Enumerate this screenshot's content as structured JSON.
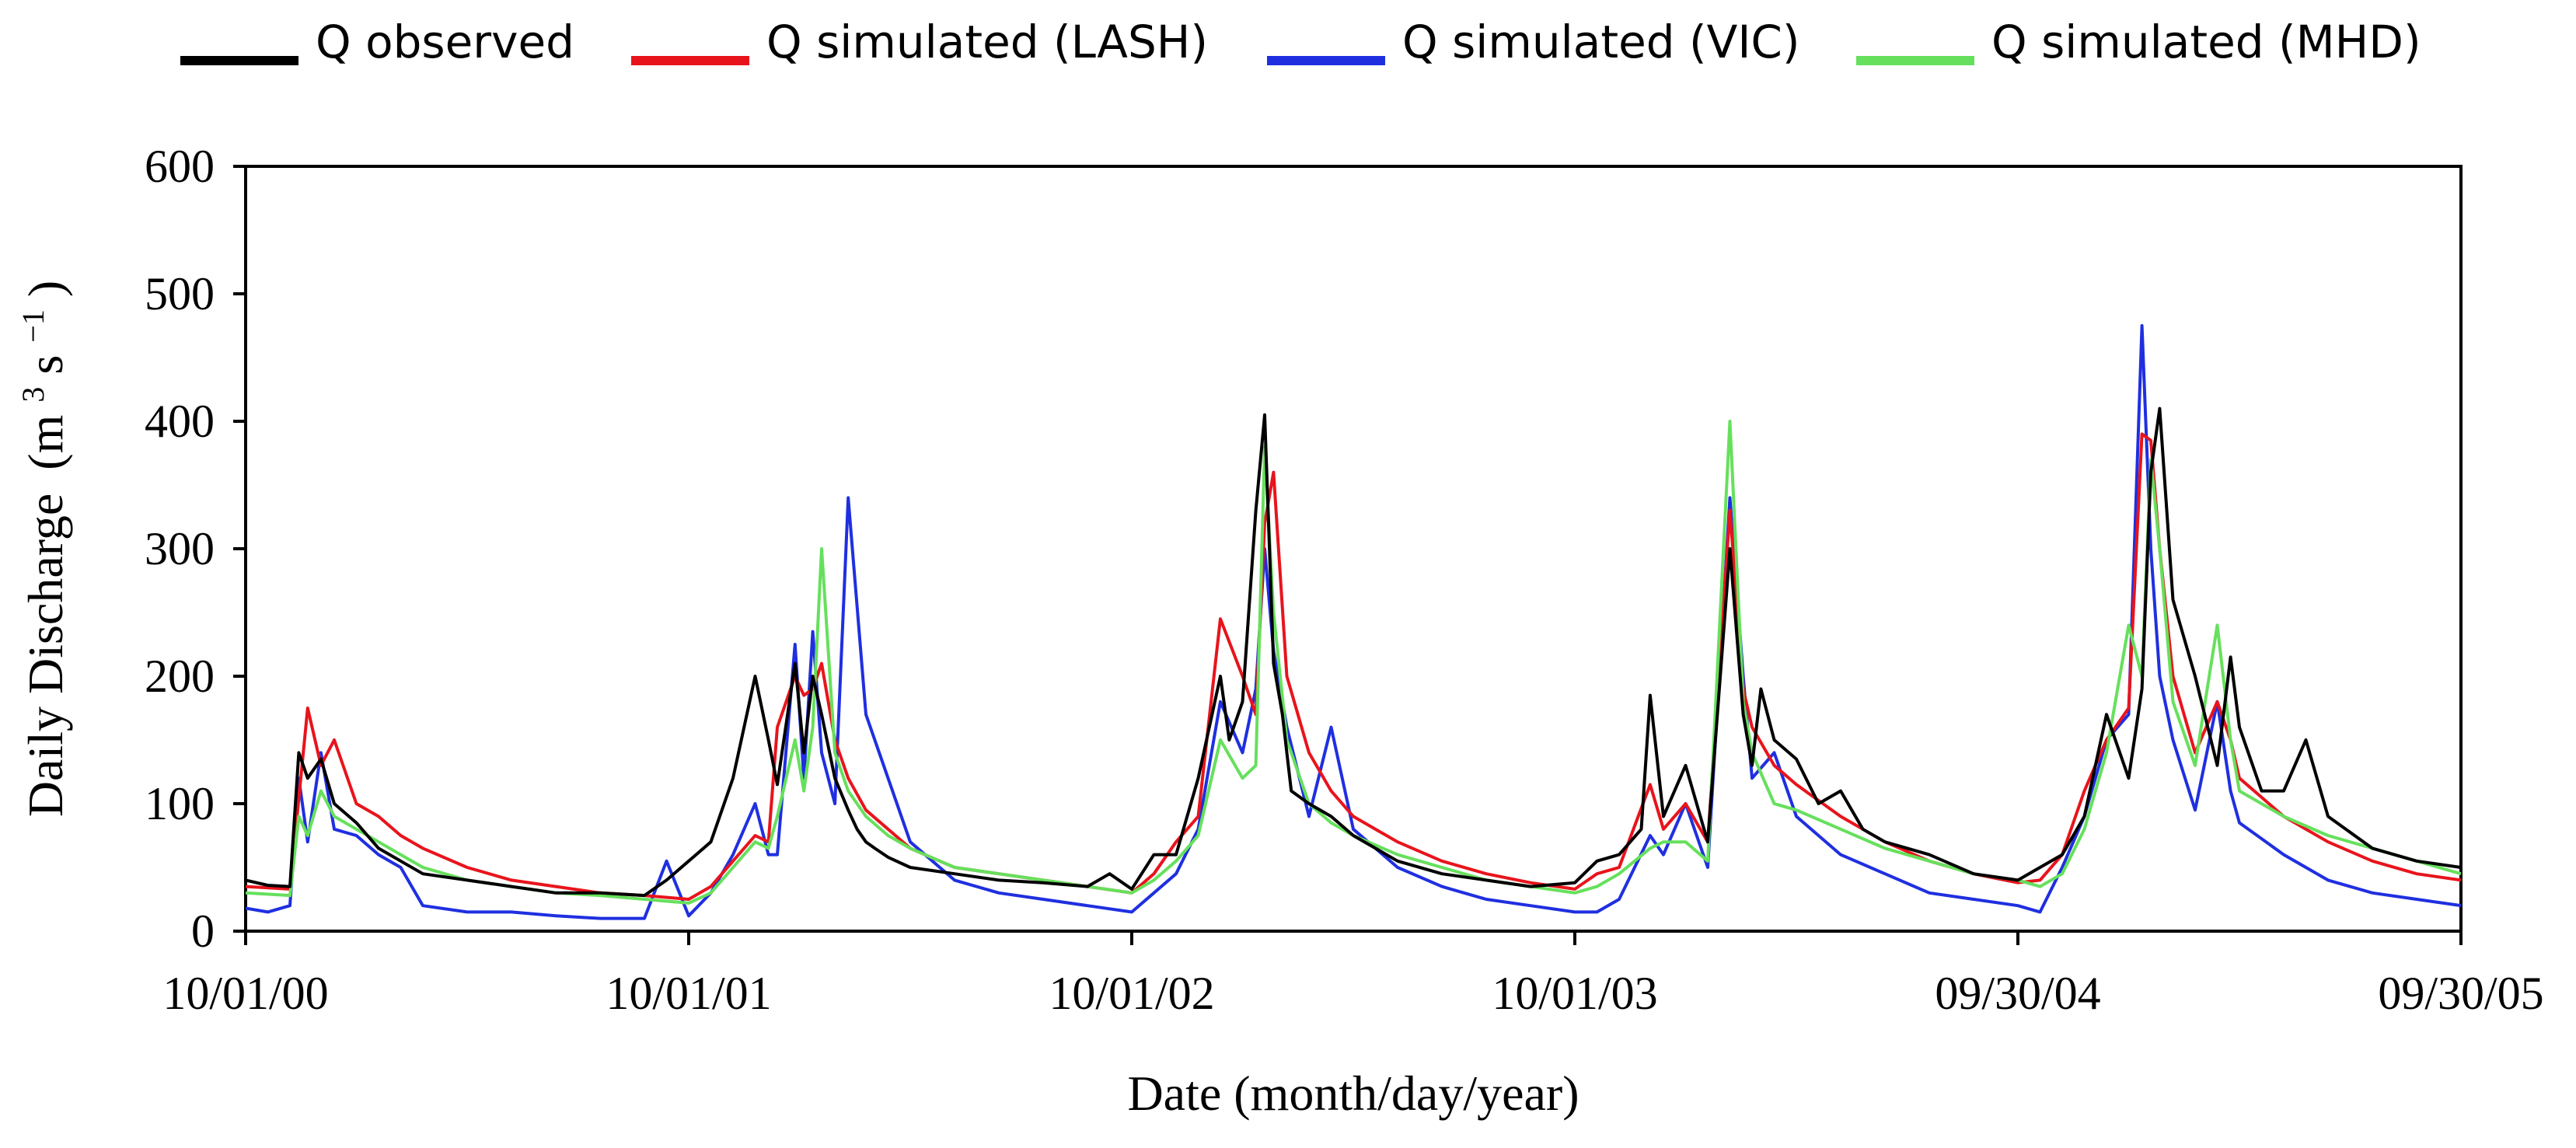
{
  "chart_data": {
    "type": "line",
    "title": "",
    "xlabel": "Date (month/day/year)",
    "ylabel": "Daily Discharge",
    "ylabel_unit": {
      "base": "(m",
      "sup1": "3",
      "mid": "s",
      "sup2": "−1",
      "end": ")"
    },
    "ylim": [
      0,
      600
    ],
    "yticks": [
      "0",
      "100",
      "200",
      "300",
      "400",
      "500",
      "600"
    ],
    "xlim": [
      "10/01/00",
      "09/30/05"
    ],
    "xticks": [
      "10/01/00",
      "10/01/01",
      "10/01/02",
      "10/01/03",
      "09/30/04",
      "09/30/05"
    ],
    "grid": false,
    "legend_position": "top",
    "series": [
      {
        "name": "Q observed",
        "color": "#000000",
        "x": [
          0,
          0.05,
          0.1,
          0.12,
          0.14,
          0.17,
          0.2,
          0.25,
          0.3,
          0.35,
          0.4,
          0.5,
          0.6,
          0.7,
          0.8,
          0.9,
          0.95,
          1.0,
          1.05,
          1.1,
          1.15,
          1.18,
          1.2,
          1.24,
          1.26,
          1.28,
          1.3,
          1.33,
          1.36,
          1.38,
          1.4,
          1.42,
          1.45,
          1.5,
          1.6,
          1.7,
          1.8,
          1.9,
          1.95,
          2.0,
          2.05,
          2.1,
          2.15,
          2.2,
          2.22,
          2.25,
          2.28,
          2.3,
          2.32,
          2.34,
          2.36,
          2.4,
          2.45,
          2.5,
          2.55,
          2.6,
          2.7,
          2.8,
          2.9,
          3.0,
          3.05,
          3.1,
          3.15,
          3.17,
          3.2,
          3.25,
          3.3,
          3.35,
          3.38,
          3.4,
          3.42,
          3.45,
          3.5,
          3.55,
          3.6,
          3.65,
          3.7,
          3.8,
          3.9,
          4.0,
          4.05,
          4.1,
          4.15,
          4.2,
          4.25,
          4.28,
          4.3,
          4.32,
          4.35,
          4.4,
          4.45,
          4.48,
          4.5,
          4.55,
          4.6,
          4.65,
          4.7,
          4.8,
          4.9,
          5.0
        ],
        "y": [
          40,
          36,
          35,
          140,
          120,
          135,
          100,
          85,
          65,
          55,
          45,
          40,
          35,
          30,
          30,
          28,
          40,
          55,
          70,
          120,
          200,
          150,
          115,
          210,
          140,
          200,
          170,
          120,
          95,
          80,
          70,
          65,
          58,
          50,
          45,
          40,
          38,
          35,
          45,
          33,
          60,
          60,
          120,
          200,
          150,
          180,
          330,
          405,
          210,
          170,
          110,
          100,
          90,
          75,
          65,
          55,
          45,
          40,
          35,
          38,
          55,
          60,
          80,
          185,
          90,
          130,
          70,
          300,
          170,
          130,
          190,
          150,
          135,
          100,
          110,
          80,
          70,
          60,
          45,
          40,
          50,
          60,
          90,
          170,
          120,
          190,
          360,
          410,
          260,
          200,
          130,
          215,
          160,
          110,
          110,
          150,
          90,
          65,
          55,
          50
        ]
      },
      {
        "name": "Q simulated (LASH)",
        "color": "#e8141c",
        "x": [
          0,
          0.1,
          0.14,
          0.17,
          0.2,
          0.25,
          0.3,
          0.35,
          0.4,
          0.5,
          0.6,
          0.7,
          0.8,
          0.9,
          1.0,
          1.05,
          1.1,
          1.15,
          1.18,
          1.2,
          1.24,
          1.26,
          1.28,
          1.3,
          1.33,
          1.36,
          1.4,
          1.45,
          1.5,
          1.6,
          1.7,
          1.8,
          1.9,
          2.0,
          2.05,
          2.1,
          2.15,
          2.2,
          2.25,
          2.28,
          2.3,
          2.32,
          2.35,
          2.4,
          2.45,
          2.5,
          2.6,
          2.7,
          2.8,
          2.9,
          3.0,
          3.05,
          3.1,
          3.17,
          3.2,
          3.25,
          3.3,
          3.35,
          3.38,
          3.4,
          3.45,
          3.5,
          3.6,
          3.7,
          3.8,
          3.9,
          4.0,
          4.05,
          4.1,
          4.15,
          4.2,
          4.25,
          4.28,
          4.3,
          4.32,
          4.35,
          4.4,
          4.45,
          4.48,
          4.5,
          4.6,
          4.7,
          4.8,
          4.9,
          5.0
        ],
        "y": [
          35,
          33,
          175,
          130,
          150,
          100,
          90,
          75,
          65,
          50,
          40,
          35,
          30,
          28,
          25,
          35,
          55,
          75,
          70,
          160,
          200,
          185,
          190,
          210,
          150,
          120,
          95,
          80,
          65,
          50,
          45,
          40,
          35,
          30,
          45,
          70,
          90,
          245,
          200,
          170,
          320,
          360,
          200,
          140,
          110,
          90,
          70,
          55,
          45,
          38,
          33,
          45,
          50,
          115,
          80,
          100,
          70,
          330,
          190,
          160,
          130,
          115,
          90,
          70,
          55,
          45,
          38,
          40,
          60,
          110,
          150,
          175,
          390,
          385,
          300,
          200,
          140,
          180,
          150,
          120,
          90,
          70,
          55,
          45,
          40
        ]
      },
      {
        "name": "Q simulated (VIC)",
        "color": "#1f2fe0",
        "x": [
          0,
          0.05,
          0.1,
          0.12,
          0.14,
          0.17,
          0.2,
          0.25,
          0.3,
          0.35,
          0.4,
          0.5,
          0.6,
          0.7,
          0.8,
          0.9,
          0.95,
          1.0,
          1.05,
          1.1,
          1.15,
          1.18,
          1.2,
          1.24,
          1.26,
          1.28,
          1.3,
          1.33,
          1.36,
          1.4,
          1.45,
          1.5,
          1.6,
          1.7,
          1.8,
          1.9,
          2.0,
          2.05,
          2.1,
          2.15,
          2.2,
          2.25,
          2.28,
          2.3,
          2.32,
          2.35,
          2.4,
          2.45,
          2.5,
          2.6,
          2.7,
          2.8,
          2.9,
          3.0,
          3.05,
          3.1,
          3.17,
          3.2,
          3.25,
          3.3,
          3.35,
          3.38,
          3.4,
          3.45,
          3.5,
          3.6,
          3.7,
          3.8,
          3.9,
          4.0,
          4.05,
          4.1,
          4.15,
          4.2,
          4.25,
          4.28,
          4.3,
          4.32,
          4.35,
          4.4,
          4.45,
          4.48,
          4.5,
          4.6,
          4.7,
          4.8,
          4.9,
          5.0
        ],
        "y": [
          18,
          15,
          20,
          120,
          70,
          140,
          80,
          75,
          60,
          50,
          20,
          15,
          15,
          12,
          10,
          10,
          55,
          12,
          30,
          60,
          100,
          60,
          60,
          225,
          120,
          235,
          140,
          100,
          340,
          170,
          120,
          70,
          40,
          30,
          25,
          20,
          15,
          30,
          45,
          80,
          180,
          140,
          190,
          300,
          220,
          160,
          90,
          160,
          80,
          50,
          35,
          25,
          20,
          15,
          15,
          25,
          75,
          60,
          100,
          50,
          340,
          200,
          120,
          140,
          90,
          60,
          45,
          30,
          25,
          20,
          15,
          50,
          90,
          150,
          170,
          475,
          300,
          200,
          150,
          95,
          180,
          110,
          85,
          60,
          40,
          30,
          25,
          20
        ]
      },
      {
        "name": "Q simulated (MHD)",
        "color": "#66e05c",
        "x": [
          0,
          0.1,
          0.12,
          0.14,
          0.17,
          0.2,
          0.25,
          0.3,
          0.35,
          0.4,
          0.5,
          0.6,
          0.7,
          0.8,
          0.9,
          1.0,
          1.05,
          1.1,
          1.15,
          1.18,
          1.2,
          1.24,
          1.26,
          1.28,
          1.3,
          1.33,
          1.36,
          1.4,
          1.45,
          1.5,
          1.6,
          1.7,
          1.8,
          1.9,
          2.0,
          2.05,
          2.1,
          2.15,
          2.2,
          2.25,
          2.28,
          2.3,
          2.32,
          2.35,
          2.4,
          2.45,
          2.5,
          2.6,
          2.7,
          2.8,
          2.9,
          3.0,
          3.05,
          3.1,
          3.17,
          3.2,
          3.25,
          3.3,
          3.35,
          3.38,
          3.4,
          3.45,
          3.5,
          3.6,
          3.7,
          3.8,
          3.9,
          4.0,
          4.05,
          4.1,
          4.15,
          4.2,
          4.25,
          4.28,
          4.3,
          4.32,
          4.35,
          4.4,
          4.45,
          4.48,
          4.5,
          4.6,
          4.7,
          4.8,
          4.9,
          5.0
        ],
        "y": [
          30,
          28,
          90,
          75,
          110,
          90,
          80,
          70,
          60,
          50,
          40,
          35,
          30,
          28,
          25,
          22,
          30,
          50,
          70,
          65,
          90,
          150,
          110,
          160,
          300,
          140,
          110,
          90,
          75,
          65,
          50,
          45,
          40,
          35,
          30,
          40,
          55,
          75,
          150,
          120,
          130,
          380,
          250,
          150,
          100,
          85,
          75,
          60,
          50,
          40,
          35,
          30,
          35,
          45,
          65,
          70,
          70,
          55,
          400,
          180,
          140,
          100,
          95,
          80,
          65,
          55,
          45,
          40,
          35,
          45,
          80,
          140,
          240,
          200,
          370,
          300,
          180,
          130,
          240,
          150,
          110,
          90,
          75,
          65,
          55,
          45
        ]
      }
    ]
  }
}
